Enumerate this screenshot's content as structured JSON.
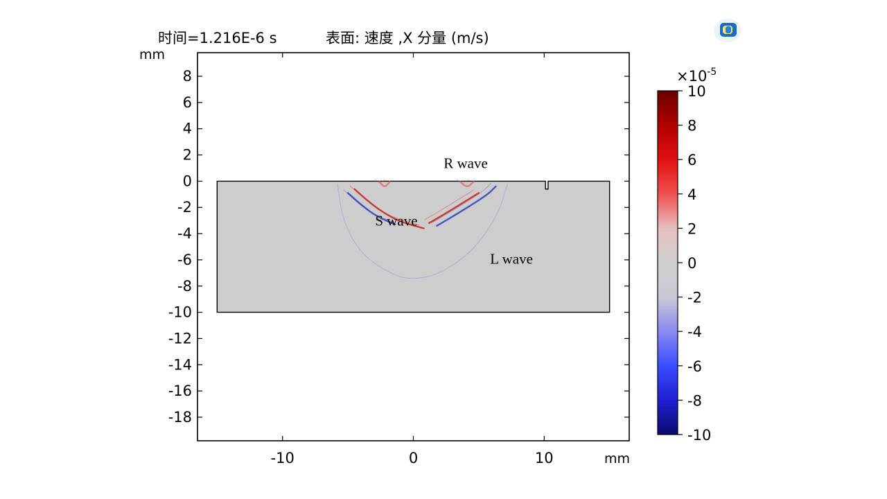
{
  "chart_data": {
    "type": "heatmap",
    "header": {
      "time": "时间=1.216E-6 s",
      "quantity": "表面: 速度 ,X 分量 (m/s)"
    },
    "x_axis": {
      "unit": "mm",
      "ticks": [
        -10,
        0,
        10
      ],
      "range": [
        -16.5,
        16.5
      ]
    },
    "y_axis": {
      "unit": "mm",
      "ticks": [
        8,
        6,
        4,
        2,
        0,
        -2,
        -4,
        -6,
        -8,
        -10,
        -12,
        -14,
        -16,
        -18
      ],
      "range": [
        -19.8,
        9.8
      ]
    },
    "domain": {
      "x": [
        -15,
        15
      ],
      "y": [
        -10,
        0
      ],
      "notch": {
        "x": [
          10.1,
          10.3
        ],
        "depth": 0.6
      }
    },
    "colorbar": {
      "multiplier": "×10",
      "exponent": "-5",
      "ticks": [
        10,
        8,
        6,
        4,
        2,
        0,
        -2,
        -4,
        -6,
        -8,
        -10
      ],
      "range": [
        -10,
        10
      ],
      "colors": [
        "#0a0a6e",
        "#1f1fd0",
        "#3a4dff",
        "#8a8af0",
        "#c9c9d6",
        "#cfcfcf",
        "#e6c0c0",
        "#f05050",
        "#e01010",
        "#b00000",
        "#6a0000"
      ]
    },
    "annotations": [
      {
        "text": "R wave",
        "x": 4,
        "y": 1.0
      },
      {
        "text": "S wave",
        "x": -1.3,
        "y": -3.4
      },
      {
        "text": "L wave",
        "x": 7.5,
        "y": -6.3
      }
    ],
    "wavefronts": [
      {
        "id": "s-front-left",
        "color": "#d02020",
        "points": [
          [
            -4.5,
            -0.6
          ],
          [
            -3.5,
            -1.5
          ],
          [
            -2.3,
            -2.4
          ],
          [
            -1.0,
            -3.1
          ],
          [
            0.8,
            -3.6
          ]
        ]
      },
      {
        "id": "s-front-left-b",
        "color": "#3040c0",
        "points": [
          [
            -5.0,
            -0.9
          ],
          [
            -4.0,
            -1.8
          ],
          [
            -2.8,
            -2.7
          ],
          [
            -1.4,
            -3.3
          ]
        ]
      },
      {
        "id": "s-front-right",
        "color": "#3040c0",
        "points": [
          [
            1.8,
            -3.4
          ],
          [
            3.0,
            -2.7
          ],
          [
            4.3,
            -1.9
          ],
          [
            5.7,
            -1.0
          ],
          [
            6.3,
            -0.4
          ]
        ]
      },
      {
        "id": "s-front-right-b",
        "color": "#d02020",
        "points": [
          [
            1.2,
            -3.2
          ],
          [
            2.4,
            -2.5
          ],
          [
            3.7,
            -1.7
          ],
          [
            5.0,
            -0.9
          ]
        ]
      },
      {
        "id": "l-front",
        "color": "#9aa0d8",
        "points": [
          [
            -5.8,
            -0.2
          ],
          [
            -5.4,
            -3.0
          ],
          [
            -4.0,
            -5.6
          ],
          [
            -1.5,
            -7.2
          ],
          [
            0.0,
            -7.5
          ],
          [
            2.0,
            -7.1
          ],
          [
            4.6,
            -5.3
          ],
          [
            6.5,
            -2.5
          ],
          [
            7.2,
            -0.2
          ]
        ]
      },
      {
        "id": "r-wave-left",
        "color": "#e07070",
        "points": [
          [
            -2.6,
            -0.05
          ],
          [
            -2.2,
            -0.5
          ],
          [
            -1.8,
            -0.05
          ]
        ]
      },
      {
        "id": "r-wave-right",
        "color": "#e07070",
        "points": [
          [
            3.6,
            -0.05
          ],
          [
            4.1,
            -0.5
          ],
          [
            4.6,
            -0.05
          ]
        ]
      }
    ]
  }
}
